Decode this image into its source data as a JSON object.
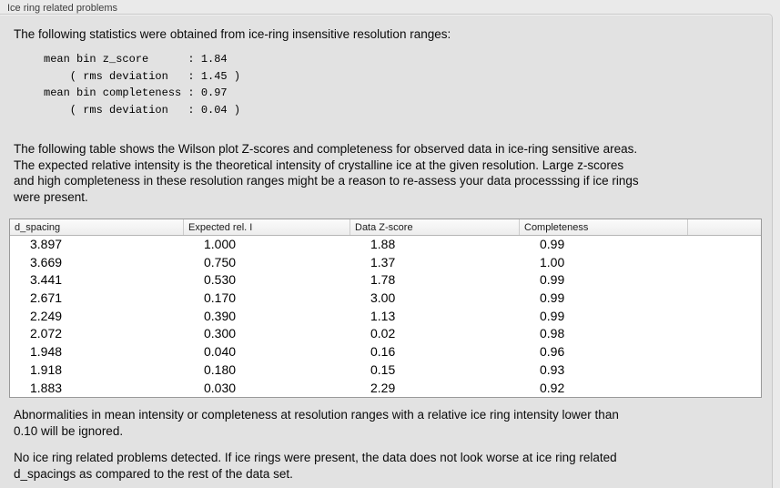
{
  "panel": {
    "title": "Ice ring related problems",
    "intro": "The following statistics were obtained from ice-ring insensitive resolution ranges:",
    "stats_lines": [
      "mean bin z_score      : 1.84",
      "    ( rms deviation   : 1.45 )",
      "mean bin completeness : 0.97",
      "    ( rms deviation   : 0.04 )"
    ],
    "description_lines": [
      "The following table shows the Wilson plot Z-scores and completeness for observed data in ice-ring sensitive areas.",
      "The expected relative intensity is the theoretical intensity of crystalline ice at the given resolution. Large z-scores",
      "and high completeness in these resolution ranges might be a reason to re-assess your data processsing if ice rings",
      "were present."
    ],
    "note_lines": [
      "Abnormalities in mean intensity or completeness at resolution ranges with a relative ice ring intensity lower than",
      "0.10 will be ignored."
    ],
    "conclusion_lines": [
      "No ice ring related problems detected. If ice rings were present, the data does not look worse at ice ring related",
      "d_spacings as compared to the rest of the data set."
    ]
  },
  "table": {
    "columns": [
      "d_spacing",
      "Expected rel. I",
      "Data Z-score",
      "Completeness"
    ],
    "rows": [
      [
        "3.897",
        "1.000",
        "1.88",
        "0.99"
      ],
      [
        "3.669",
        "0.750",
        "1.37",
        "1.00"
      ],
      [
        "3.441",
        "0.530",
        "1.78",
        "0.99"
      ],
      [
        "2.671",
        "0.170",
        "3.00",
        "0.99"
      ],
      [
        "2.249",
        "0.390",
        "1.13",
        "0.99"
      ],
      [
        "2.072",
        "0.300",
        "0.02",
        "0.98"
      ],
      [
        "1.948",
        "0.040",
        "0.16",
        "0.96"
      ],
      [
        "1.918",
        "0.180",
        "0.15",
        "0.93"
      ],
      [
        "1.883",
        "0.030",
        "2.29",
        "0.92"
      ]
    ]
  },
  "colors": {
    "page_bg": "#eaeaea",
    "panel_bg": "#e2e2e2",
    "table_border": "#999999",
    "header_bg": "#f3f3f3"
  }
}
